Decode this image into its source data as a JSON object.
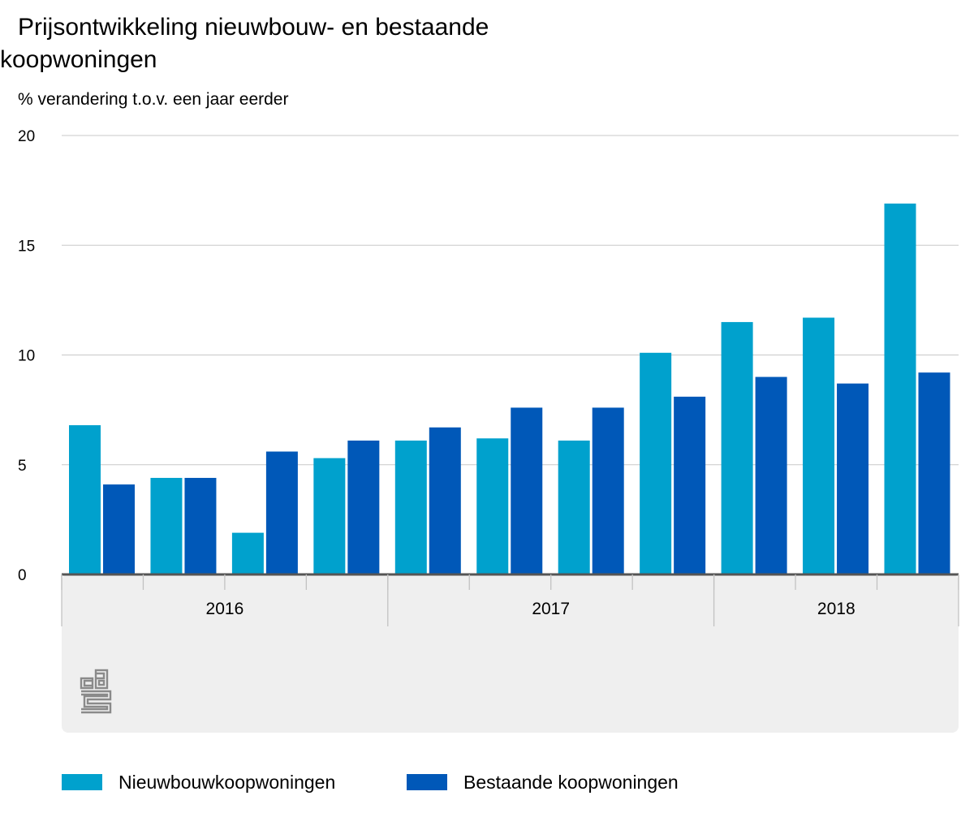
{
  "title": "Prijsontwikkeling nieuwbouw- en bestaande koopwoningen",
  "subtitle": "% verandering t.o.v. een jaar eerder",
  "logo": "cbs",
  "chart_data": {
    "type": "bar",
    "ylabel": "% verandering t.o.v. een jaar eerder",
    "ylim": [
      0,
      20
    ],
    "yticks": [
      0,
      5,
      10,
      15,
      20
    ],
    "grid": true,
    "legend_position": "bottom",
    "categories": [
      "2016 Q1",
      "2016 Q2",
      "2016 Q3",
      "2016 Q4",
      "2017 Q1",
      "2017 Q2",
      "2017 Q3",
      "2017 Q4",
      "2018 Q1",
      "2018 Q2",
      "2018 Q3"
    ],
    "year_labels": [
      {
        "label": "2016",
        "quarters": 4
      },
      {
        "label": "2017",
        "quarters": 4
      },
      {
        "label": "2018",
        "quarters": 3
      }
    ],
    "series": [
      {
        "name": "Nieuwbouwkoopwoningen",
        "color": "#00a1cd",
        "values": [
          6.8,
          4.4,
          1.9,
          5.3,
          6.1,
          6.2,
          6.1,
          10.1,
          11.5,
          11.7,
          16.9
        ]
      },
      {
        "name": "Bestaande koopwoningen",
        "color": "#0058b8",
        "values": [
          4.1,
          4.4,
          5.6,
          6.1,
          6.7,
          7.6,
          7.6,
          8.1,
          9.0,
          8.7,
          9.2
        ]
      }
    ]
  }
}
